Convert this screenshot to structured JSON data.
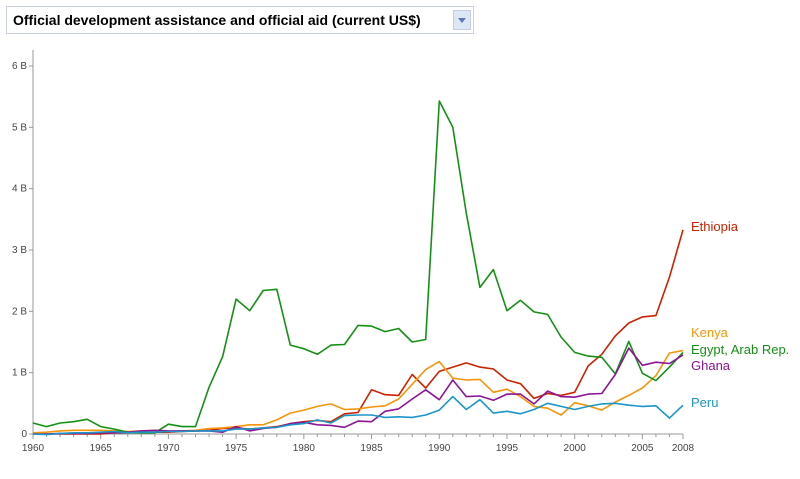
{
  "header": {
    "title": "Official development assistance and official aid (current US$)"
  },
  "chart_data": {
    "type": "line",
    "title": "Official development assistance and official aid (current US$)",
    "xlabel": "",
    "ylabel": "",
    "xlim": [
      1960,
      2008
    ],
    "ylim": [
      0,
      6
    ],
    "y_unit": "billion US$",
    "x_ticks": [
      1960,
      1965,
      1970,
      1975,
      1980,
      1985,
      1990,
      1995,
      2000,
      2005,
      2008
    ],
    "y_ticks": [
      0,
      1,
      2,
      3,
      4,
      5,
      6
    ],
    "y_tick_labels": [
      "0",
      "1 B",
      "2 B",
      "3 B",
      "4 B",
      "5 B",
      "6 B"
    ],
    "grid": false,
    "legend": "inline-right",
    "x": [
      1960,
      1961,
      1962,
      1963,
      1964,
      1965,
      1966,
      1967,
      1968,
      1969,
      1970,
      1971,
      1972,
      1973,
      1974,
      1975,
      1976,
      1977,
      1978,
      1979,
      1980,
      1981,
      1982,
      1983,
      1984,
      1985,
      1986,
      1987,
      1988,
      1989,
      1990,
      1991,
      1992,
      1993,
      1994,
      1995,
      1996,
      1997,
      1998,
      1999,
      2000,
      2001,
      2002,
      2003,
      2004,
      2005,
      2006,
      2007,
      2008
    ],
    "series": [
      {
        "name": "Ethiopia",
        "color": "#cc2200",
        "values": [
          0.0,
          0.0,
          0.0,
          0.0,
          0.0,
          0.0,
          0.02,
          0.02,
          0.03,
          0.03,
          0.03,
          0.04,
          0.05,
          0.06,
          0.09,
          0.1,
          0.08,
          0.1,
          0.12,
          0.17,
          0.2,
          0.22,
          0.2,
          0.33,
          0.35,
          0.72,
          0.64,
          0.63,
          0.97,
          0.75,
          1.02,
          1.09,
          1.16,
          1.09,
          1.06,
          0.88,
          0.82,
          0.58,
          0.66,
          0.63,
          0.68,
          1.11,
          1.3,
          1.6,
          1.81,
          1.91,
          1.93,
          2.56,
          3.33
        ]
      },
      {
        "name": "Kenya",
        "color": "#f5950a",
        "values": [
          0.02,
          0.03,
          0.05,
          0.06,
          0.06,
          0.06,
          0.05,
          0.04,
          0.05,
          0.05,
          0.04,
          0.05,
          0.06,
          0.09,
          0.1,
          0.12,
          0.15,
          0.15,
          0.23,
          0.34,
          0.39,
          0.45,
          0.49,
          0.4,
          0.41,
          0.44,
          0.46,
          0.57,
          0.81,
          1.05,
          1.18,
          0.91,
          0.88,
          0.89,
          0.68,
          0.73,
          0.61,
          0.45,
          0.42,
          0.31,
          0.51,
          0.46,
          0.39,
          0.52,
          0.63,
          0.75,
          0.95,
          1.32,
          1.36
        ]
      },
      {
        "name": "Egypt, Arab Rep.",
        "color": "#149114",
        "values": [
          0.18,
          0.12,
          0.18,
          0.2,
          0.24,
          0.12,
          0.08,
          0.03,
          0.02,
          0.02,
          0.16,
          0.12,
          0.12,
          0.76,
          1.26,
          2.2,
          2.01,
          2.34,
          2.36,
          1.45,
          1.39,
          1.3,
          1.45,
          1.46,
          1.77,
          1.76,
          1.67,
          1.72,
          1.5,
          1.54,
          5.43,
          5.0,
          3.6,
          2.39,
          2.68,
          2.01,
          2.18,
          1.99,
          1.95,
          1.58,
          1.33,
          1.27,
          1.25,
          0.98,
          1.51,
          0.99,
          0.87,
          1.09,
          1.33
        ]
      },
      {
        "name": "Ghana",
        "color": "#8c1496",
        "values": [
          0.0,
          0.0,
          0.01,
          0.01,
          0.01,
          0.02,
          0.02,
          0.03,
          0.05,
          0.06,
          0.05,
          0.05,
          0.05,
          0.05,
          0.03,
          0.12,
          0.05,
          0.09,
          0.11,
          0.17,
          0.19,
          0.15,
          0.14,
          0.11,
          0.21,
          0.2,
          0.37,
          0.41,
          0.57,
          0.72,
          0.56,
          0.88,
          0.61,
          0.62,
          0.55,
          0.65,
          0.65,
          0.49,
          0.7,
          0.61,
          0.6,
          0.65,
          0.66,
          0.97,
          1.4,
          1.12,
          1.17,
          1.15,
          1.29
        ]
      },
      {
        "name": "Peru",
        "color": "#1a96c8",
        "values": [
          0.0,
          -0.01,
          0.01,
          0.02,
          0.02,
          0.03,
          0.04,
          0.02,
          0.03,
          0.03,
          0.04,
          0.04,
          0.05,
          0.05,
          0.05,
          0.08,
          0.08,
          0.1,
          0.11,
          0.15,
          0.17,
          0.23,
          0.18,
          0.3,
          0.31,
          0.31,
          0.27,
          0.28,
          0.27,
          0.31,
          0.39,
          0.61,
          0.4,
          0.56,
          0.34,
          0.37,
          0.33,
          0.4,
          0.5,
          0.45,
          0.4,
          0.45,
          0.49,
          0.5,
          0.47,
          0.45,
          0.46,
          0.26,
          0.47
        ]
      }
    ]
  }
}
